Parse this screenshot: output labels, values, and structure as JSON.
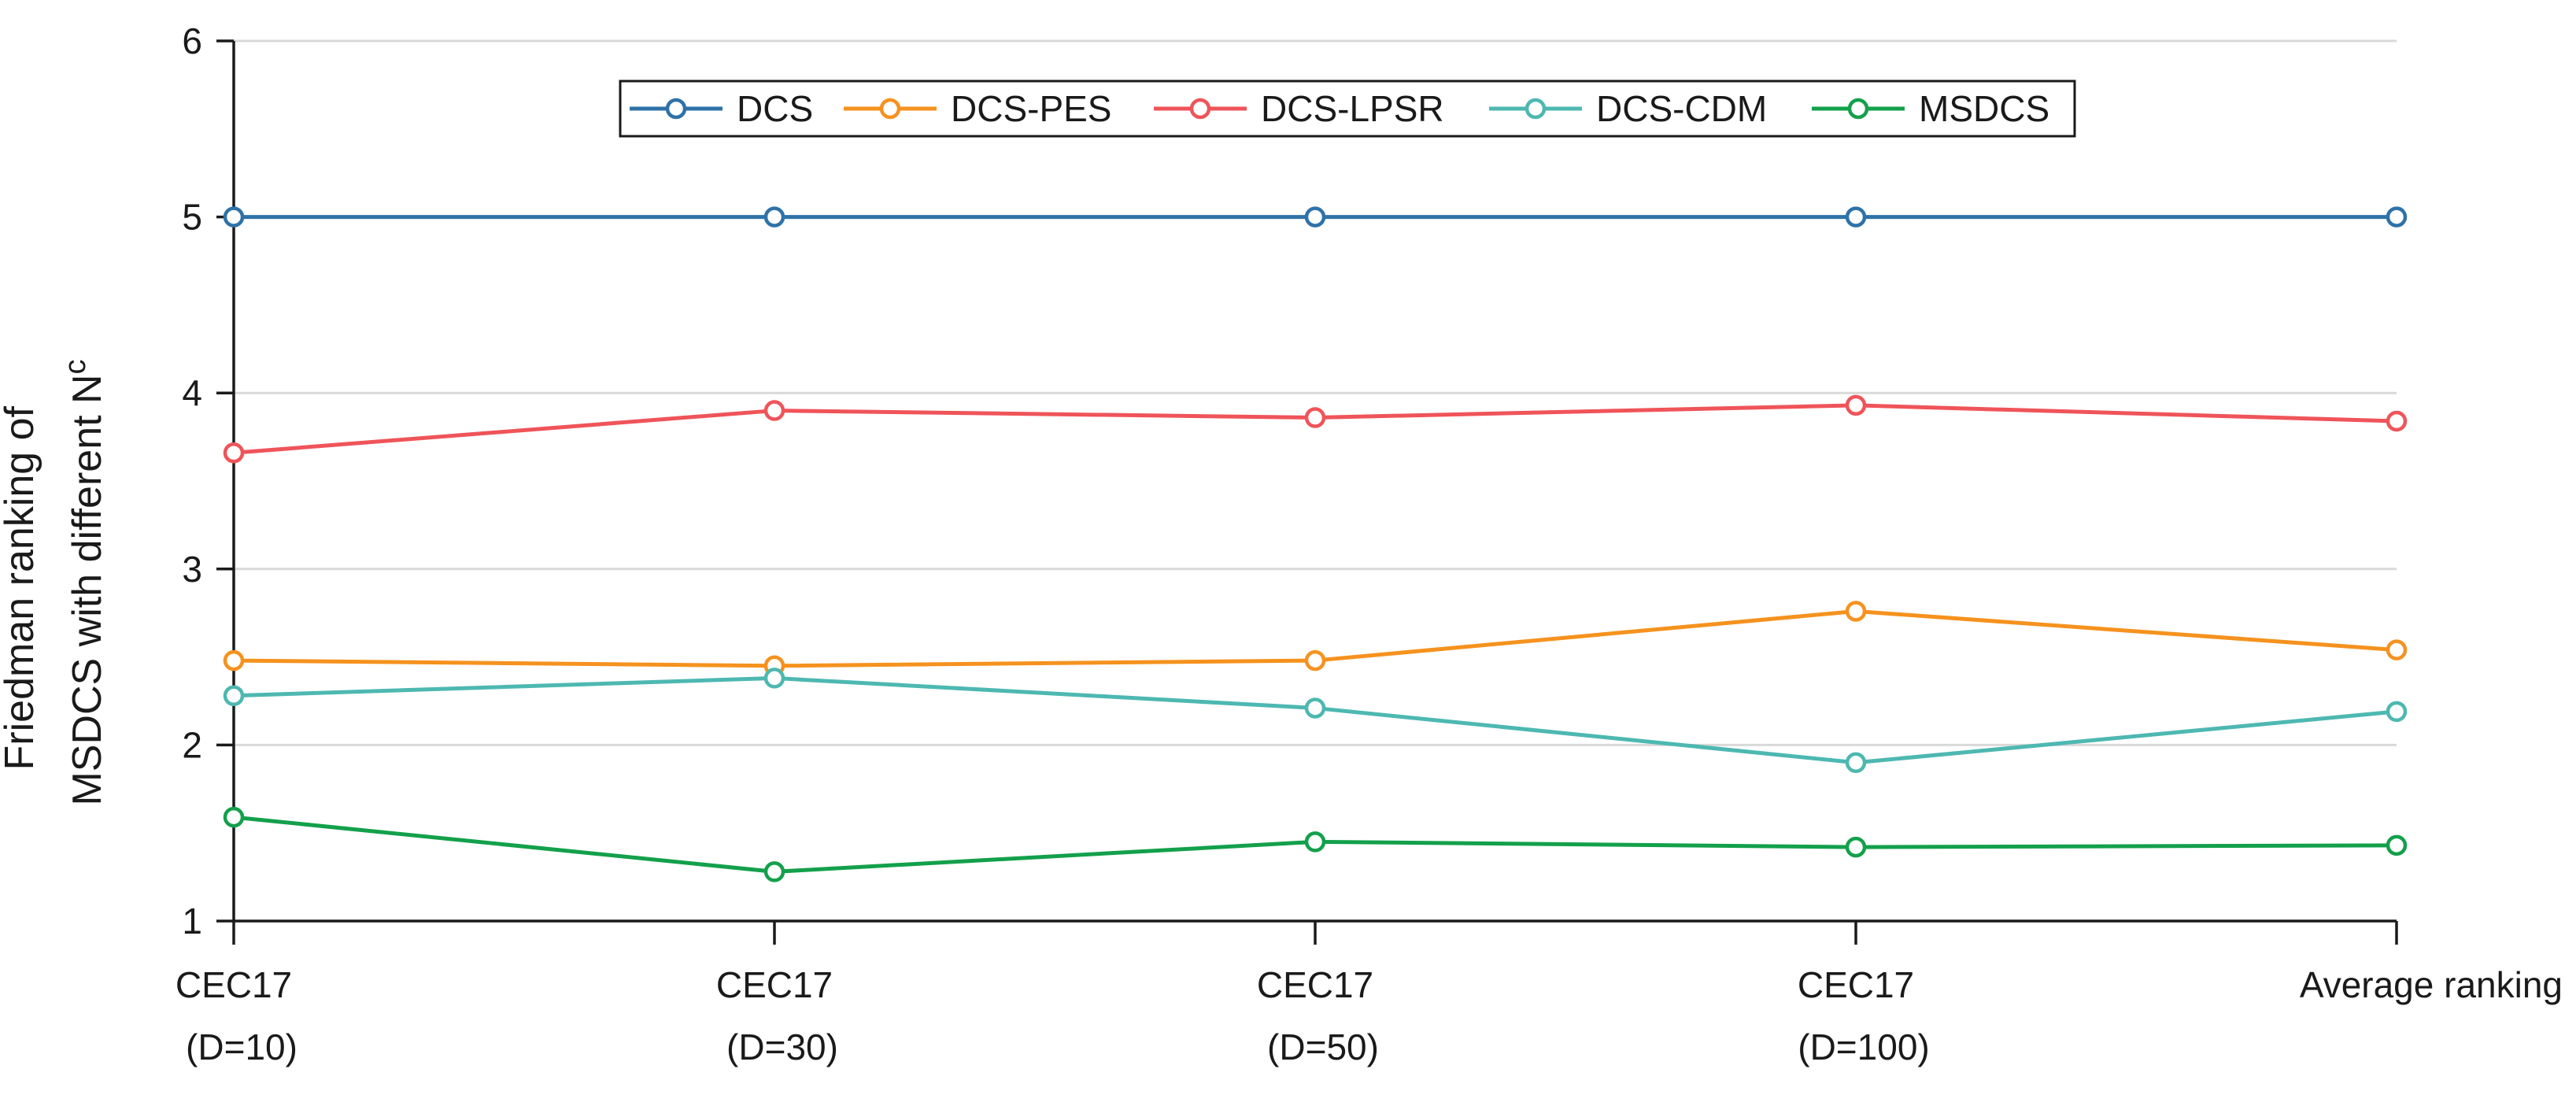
{
  "chart_data": {
    "type": "line",
    "title": "",
    "xlabel": "",
    "ylabel": {
      "line1": "Friedman ranking of",
      "line2": "MSDCS with different N",
      "subscript": "c"
    },
    "ylim": [
      1,
      6
    ],
    "yticks": [
      "1",
      "2",
      "3",
      "4",
      "5",
      "6"
    ],
    "grid": true,
    "legend_position": "top-center",
    "categories": [
      {
        "line1": "CEC17",
        "line2": "(D=10)"
      },
      {
        "line1": "CEC17",
        "line2": "(D=30)"
      },
      {
        "line1": "CEC17",
        "line2": "(D=50)"
      },
      {
        "line1": "CEC17",
        "line2": "(D=100)"
      },
      {
        "line1": "Average ranking",
        "line2": ""
      }
    ],
    "series": [
      {
        "name": "DCS",
        "color": "#2e72a8",
        "values": [
          5,
          5,
          5,
          5,
          5
        ]
      },
      {
        "name": "DCS-PES",
        "color": "#f5921e",
        "values": [
          2.48,
          2.45,
          2.48,
          2.76,
          2.54
        ]
      },
      {
        "name": "DCS-LPSR",
        "color": "#ef5459",
        "values": [
          3.66,
          3.9,
          3.86,
          3.93,
          3.84
        ]
      },
      {
        "name": "DCS-CDM",
        "color": "#4db8b1",
        "values": [
          2.28,
          2.38,
          2.21,
          1.9,
          2.19
        ]
      },
      {
        "name": "MSDCS",
        "color": "#13a04b",
        "values": [
          1.59,
          1.28,
          1.45,
          1.42,
          1.43
        ]
      }
    ]
  }
}
